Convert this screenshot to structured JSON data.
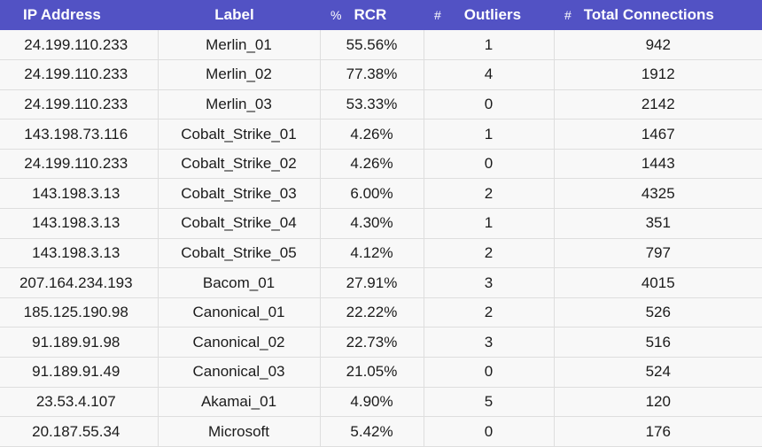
{
  "table": {
    "headers": {
      "ip": "IP Address",
      "label": "Label",
      "rcr_prefix": "%",
      "rcr": "RCR",
      "outliers_prefix": "#",
      "outliers": "Outliers",
      "total_prefix": "#",
      "total": "Total Connections"
    },
    "rows": [
      {
        "ip": "24.199.110.233",
        "label": "Merlin_01",
        "rcr": "55.56%",
        "outliers": "1",
        "total": "942"
      },
      {
        "ip": "24.199.110.233",
        "label": "Merlin_02",
        "rcr": "77.38%",
        "outliers": "4",
        "total": "1912"
      },
      {
        "ip": "24.199.110.233",
        "label": "Merlin_03",
        "rcr": "53.33%",
        "outliers": "0",
        "total": "2142"
      },
      {
        "ip": "143.198.73.116",
        "label": "Cobalt_Strike_01",
        "rcr": "4.26%",
        "outliers": "1",
        "total": "1467"
      },
      {
        "ip": "24.199.110.233",
        "label": "Cobalt_Strike_02",
        "rcr": "4.26%",
        "outliers": "0",
        "total": "1443"
      },
      {
        "ip": "143.198.3.13",
        "label": "Cobalt_Strike_03",
        "rcr": "6.00%",
        "outliers": "2",
        "total": "4325"
      },
      {
        "ip": "143.198.3.13",
        "label": "Cobalt_Strike_04",
        "rcr": "4.30%",
        "outliers": "1",
        "total": "351"
      },
      {
        "ip": "143.198.3.13",
        "label": "Cobalt_Strike_05",
        "rcr": "4.12%",
        "outliers": "2",
        "total": "797"
      },
      {
        "ip": "207.164.234.193",
        "label": "Bacom_01",
        "rcr": "27.91%",
        "outliers": "3",
        "total": "4015"
      },
      {
        "ip": "185.125.190.98",
        "label": "Canonical_01",
        "rcr": "22.22%",
        "outliers": "2",
        "total": "526"
      },
      {
        "ip": "91.189.91.98",
        "label": "Canonical_02",
        "rcr": "22.73%",
        "outliers": "3",
        "total": "516"
      },
      {
        "ip": "91.189.91.49",
        "label": "Canonical_03",
        "rcr": "21.05%",
        "outliers": "0",
        "total": "524"
      },
      {
        "ip": "23.53.4.107",
        "label": "Akamai_01",
        "rcr": "4.90%",
        "outliers": "5",
        "total": "120"
      },
      {
        "ip": "20.187.55.34",
        "label": "Microsoft",
        "rcr": "5.42%",
        "outliers": "0",
        "total": "176"
      }
    ]
  },
  "colors": {
    "header_bg": "#5252c4",
    "header_text": "#ffffff",
    "row_bg": "#f8f8f8",
    "grid_line": "#dedede"
  }
}
